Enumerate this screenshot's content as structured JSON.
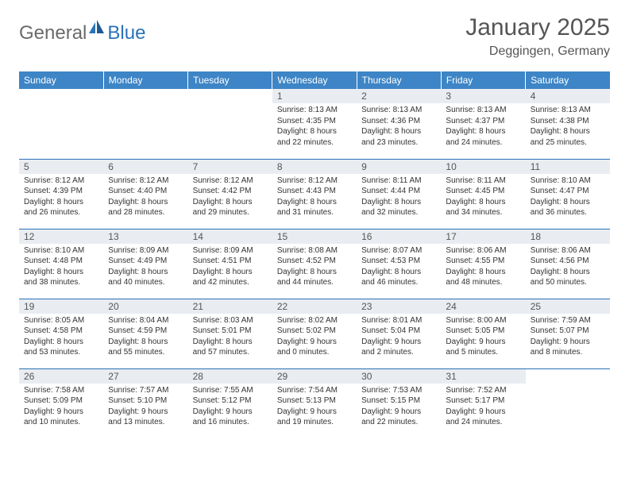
{
  "brand": {
    "general": "General",
    "blue": "Blue"
  },
  "title": {
    "month": "January 2025",
    "location": "Deggingen, Germany"
  },
  "colors": {
    "header_bg": "#3d85c6",
    "header_text": "#ffffff",
    "daynum_bg": "#e9edf1",
    "border": "#2b72b8",
    "logo_gray": "#6a6a6a",
    "logo_blue": "#2b72b8"
  },
  "fonts": {
    "body": "Arial",
    "title_size_pt": 30,
    "header_size_pt": 12,
    "cell_size_pt": 10
  },
  "day_headers": [
    "Sunday",
    "Monday",
    "Tuesday",
    "Wednesday",
    "Thursday",
    "Friday",
    "Saturday"
  ],
  "weeks": [
    [
      {
        "n": "",
        "sr": "",
        "ss": "",
        "dl": ""
      },
      {
        "n": "",
        "sr": "",
        "ss": "",
        "dl": ""
      },
      {
        "n": "",
        "sr": "",
        "ss": "",
        "dl": ""
      },
      {
        "n": "1",
        "sr": "Sunrise: 8:13 AM",
        "ss": "Sunset: 4:35 PM",
        "dl": "Daylight: 8 hours and 22 minutes."
      },
      {
        "n": "2",
        "sr": "Sunrise: 8:13 AM",
        "ss": "Sunset: 4:36 PM",
        "dl": "Daylight: 8 hours and 23 minutes."
      },
      {
        "n": "3",
        "sr": "Sunrise: 8:13 AM",
        "ss": "Sunset: 4:37 PM",
        "dl": "Daylight: 8 hours and 24 minutes."
      },
      {
        "n": "4",
        "sr": "Sunrise: 8:13 AM",
        "ss": "Sunset: 4:38 PM",
        "dl": "Daylight: 8 hours and 25 minutes."
      }
    ],
    [
      {
        "n": "5",
        "sr": "Sunrise: 8:12 AM",
        "ss": "Sunset: 4:39 PM",
        "dl": "Daylight: 8 hours and 26 minutes."
      },
      {
        "n": "6",
        "sr": "Sunrise: 8:12 AM",
        "ss": "Sunset: 4:40 PM",
        "dl": "Daylight: 8 hours and 28 minutes."
      },
      {
        "n": "7",
        "sr": "Sunrise: 8:12 AM",
        "ss": "Sunset: 4:42 PM",
        "dl": "Daylight: 8 hours and 29 minutes."
      },
      {
        "n": "8",
        "sr": "Sunrise: 8:12 AM",
        "ss": "Sunset: 4:43 PM",
        "dl": "Daylight: 8 hours and 31 minutes."
      },
      {
        "n": "9",
        "sr": "Sunrise: 8:11 AM",
        "ss": "Sunset: 4:44 PM",
        "dl": "Daylight: 8 hours and 32 minutes."
      },
      {
        "n": "10",
        "sr": "Sunrise: 8:11 AM",
        "ss": "Sunset: 4:45 PM",
        "dl": "Daylight: 8 hours and 34 minutes."
      },
      {
        "n": "11",
        "sr": "Sunrise: 8:10 AM",
        "ss": "Sunset: 4:47 PM",
        "dl": "Daylight: 8 hours and 36 minutes."
      }
    ],
    [
      {
        "n": "12",
        "sr": "Sunrise: 8:10 AM",
        "ss": "Sunset: 4:48 PM",
        "dl": "Daylight: 8 hours and 38 minutes."
      },
      {
        "n": "13",
        "sr": "Sunrise: 8:09 AM",
        "ss": "Sunset: 4:49 PM",
        "dl": "Daylight: 8 hours and 40 minutes."
      },
      {
        "n": "14",
        "sr": "Sunrise: 8:09 AM",
        "ss": "Sunset: 4:51 PM",
        "dl": "Daylight: 8 hours and 42 minutes."
      },
      {
        "n": "15",
        "sr": "Sunrise: 8:08 AM",
        "ss": "Sunset: 4:52 PM",
        "dl": "Daylight: 8 hours and 44 minutes."
      },
      {
        "n": "16",
        "sr": "Sunrise: 8:07 AM",
        "ss": "Sunset: 4:53 PM",
        "dl": "Daylight: 8 hours and 46 minutes."
      },
      {
        "n": "17",
        "sr": "Sunrise: 8:06 AM",
        "ss": "Sunset: 4:55 PM",
        "dl": "Daylight: 8 hours and 48 minutes."
      },
      {
        "n": "18",
        "sr": "Sunrise: 8:06 AM",
        "ss": "Sunset: 4:56 PM",
        "dl": "Daylight: 8 hours and 50 minutes."
      }
    ],
    [
      {
        "n": "19",
        "sr": "Sunrise: 8:05 AM",
        "ss": "Sunset: 4:58 PM",
        "dl": "Daylight: 8 hours and 53 minutes."
      },
      {
        "n": "20",
        "sr": "Sunrise: 8:04 AM",
        "ss": "Sunset: 4:59 PM",
        "dl": "Daylight: 8 hours and 55 minutes."
      },
      {
        "n": "21",
        "sr": "Sunrise: 8:03 AM",
        "ss": "Sunset: 5:01 PM",
        "dl": "Daylight: 8 hours and 57 minutes."
      },
      {
        "n": "22",
        "sr": "Sunrise: 8:02 AM",
        "ss": "Sunset: 5:02 PM",
        "dl": "Daylight: 9 hours and 0 minutes."
      },
      {
        "n": "23",
        "sr": "Sunrise: 8:01 AM",
        "ss": "Sunset: 5:04 PM",
        "dl": "Daylight: 9 hours and 2 minutes."
      },
      {
        "n": "24",
        "sr": "Sunrise: 8:00 AM",
        "ss": "Sunset: 5:05 PM",
        "dl": "Daylight: 9 hours and 5 minutes."
      },
      {
        "n": "25",
        "sr": "Sunrise: 7:59 AM",
        "ss": "Sunset: 5:07 PM",
        "dl": "Daylight: 9 hours and 8 minutes."
      }
    ],
    [
      {
        "n": "26",
        "sr": "Sunrise: 7:58 AM",
        "ss": "Sunset: 5:09 PM",
        "dl": "Daylight: 9 hours and 10 minutes."
      },
      {
        "n": "27",
        "sr": "Sunrise: 7:57 AM",
        "ss": "Sunset: 5:10 PM",
        "dl": "Daylight: 9 hours and 13 minutes."
      },
      {
        "n": "28",
        "sr": "Sunrise: 7:55 AM",
        "ss": "Sunset: 5:12 PM",
        "dl": "Daylight: 9 hours and 16 minutes."
      },
      {
        "n": "29",
        "sr": "Sunrise: 7:54 AM",
        "ss": "Sunset: 5:13 PM",
        "dl": "Daylight: 9 hours and 19 minutes."
      },
      {
        "n": "30",
        "sr": "Sunrise: 7:53 AM",
        "ss": "Sunset: 5:15 PM",
        "dl": "Daylight: 9 hours and 22 minutes."
      },
      {
        "n": "31",
        "sr": "Sunrise: 7:52 AM",
        "ss": "Sunset: 5:17 PM",
        "dl": "Daylight: 9 hours and 24 minutes."
      },
      {
        "n": "",
        "sr": "",
        "ss": "",
        "dl": ""
      }
    ]
  ]
}
